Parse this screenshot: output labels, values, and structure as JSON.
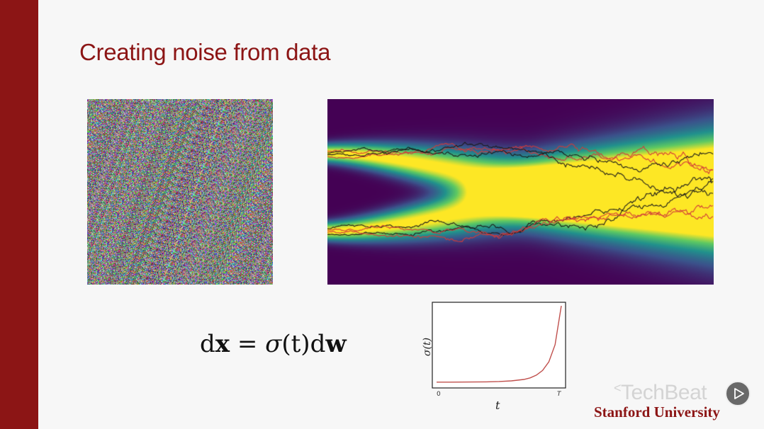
{
  "slide": {
    "title": "Creating noise from data",
    "equation": {
      "d1": "d",
      "x": "x",
      "eq": " = ",
      "sigma": "σ",
      "paren": "(t)",
      "d2": "d",
      "w": "w"
    },
    "footer_logo": "Stanford University",
    "watermark": "TechBeat",
    "colors": {
      "accent": "#8c1515",
      "curve": "#c0504d"
    }
  },
  "chart_data": {
    "type": "line",
    "ylabel": "σ(t)",
    "xlabel": "t",
    "x_ticks": [
      "0",
      "T"
    ],
    "series": [
      {
        "x": [
          0,
          0.1,
          0.2,
          0.3,
          0.4,
          0.5,
          0.6,
          0.7,
          0.75,
          0.8,
          0.85,
          0.9,
          0.95,
          1.0
        ],
        "values": [
          0.02,
          0.02,
          0.021,
          0.022,
          0.024,
          0.028,
          0.036,
          0.055,
          0.075,
          0.11,
          0.17,
          0.28,
          0.5,
          1.0
        ]
      }
    ]
  },
  "controls": {
    "play_icon": "play-icon"
  }
}
